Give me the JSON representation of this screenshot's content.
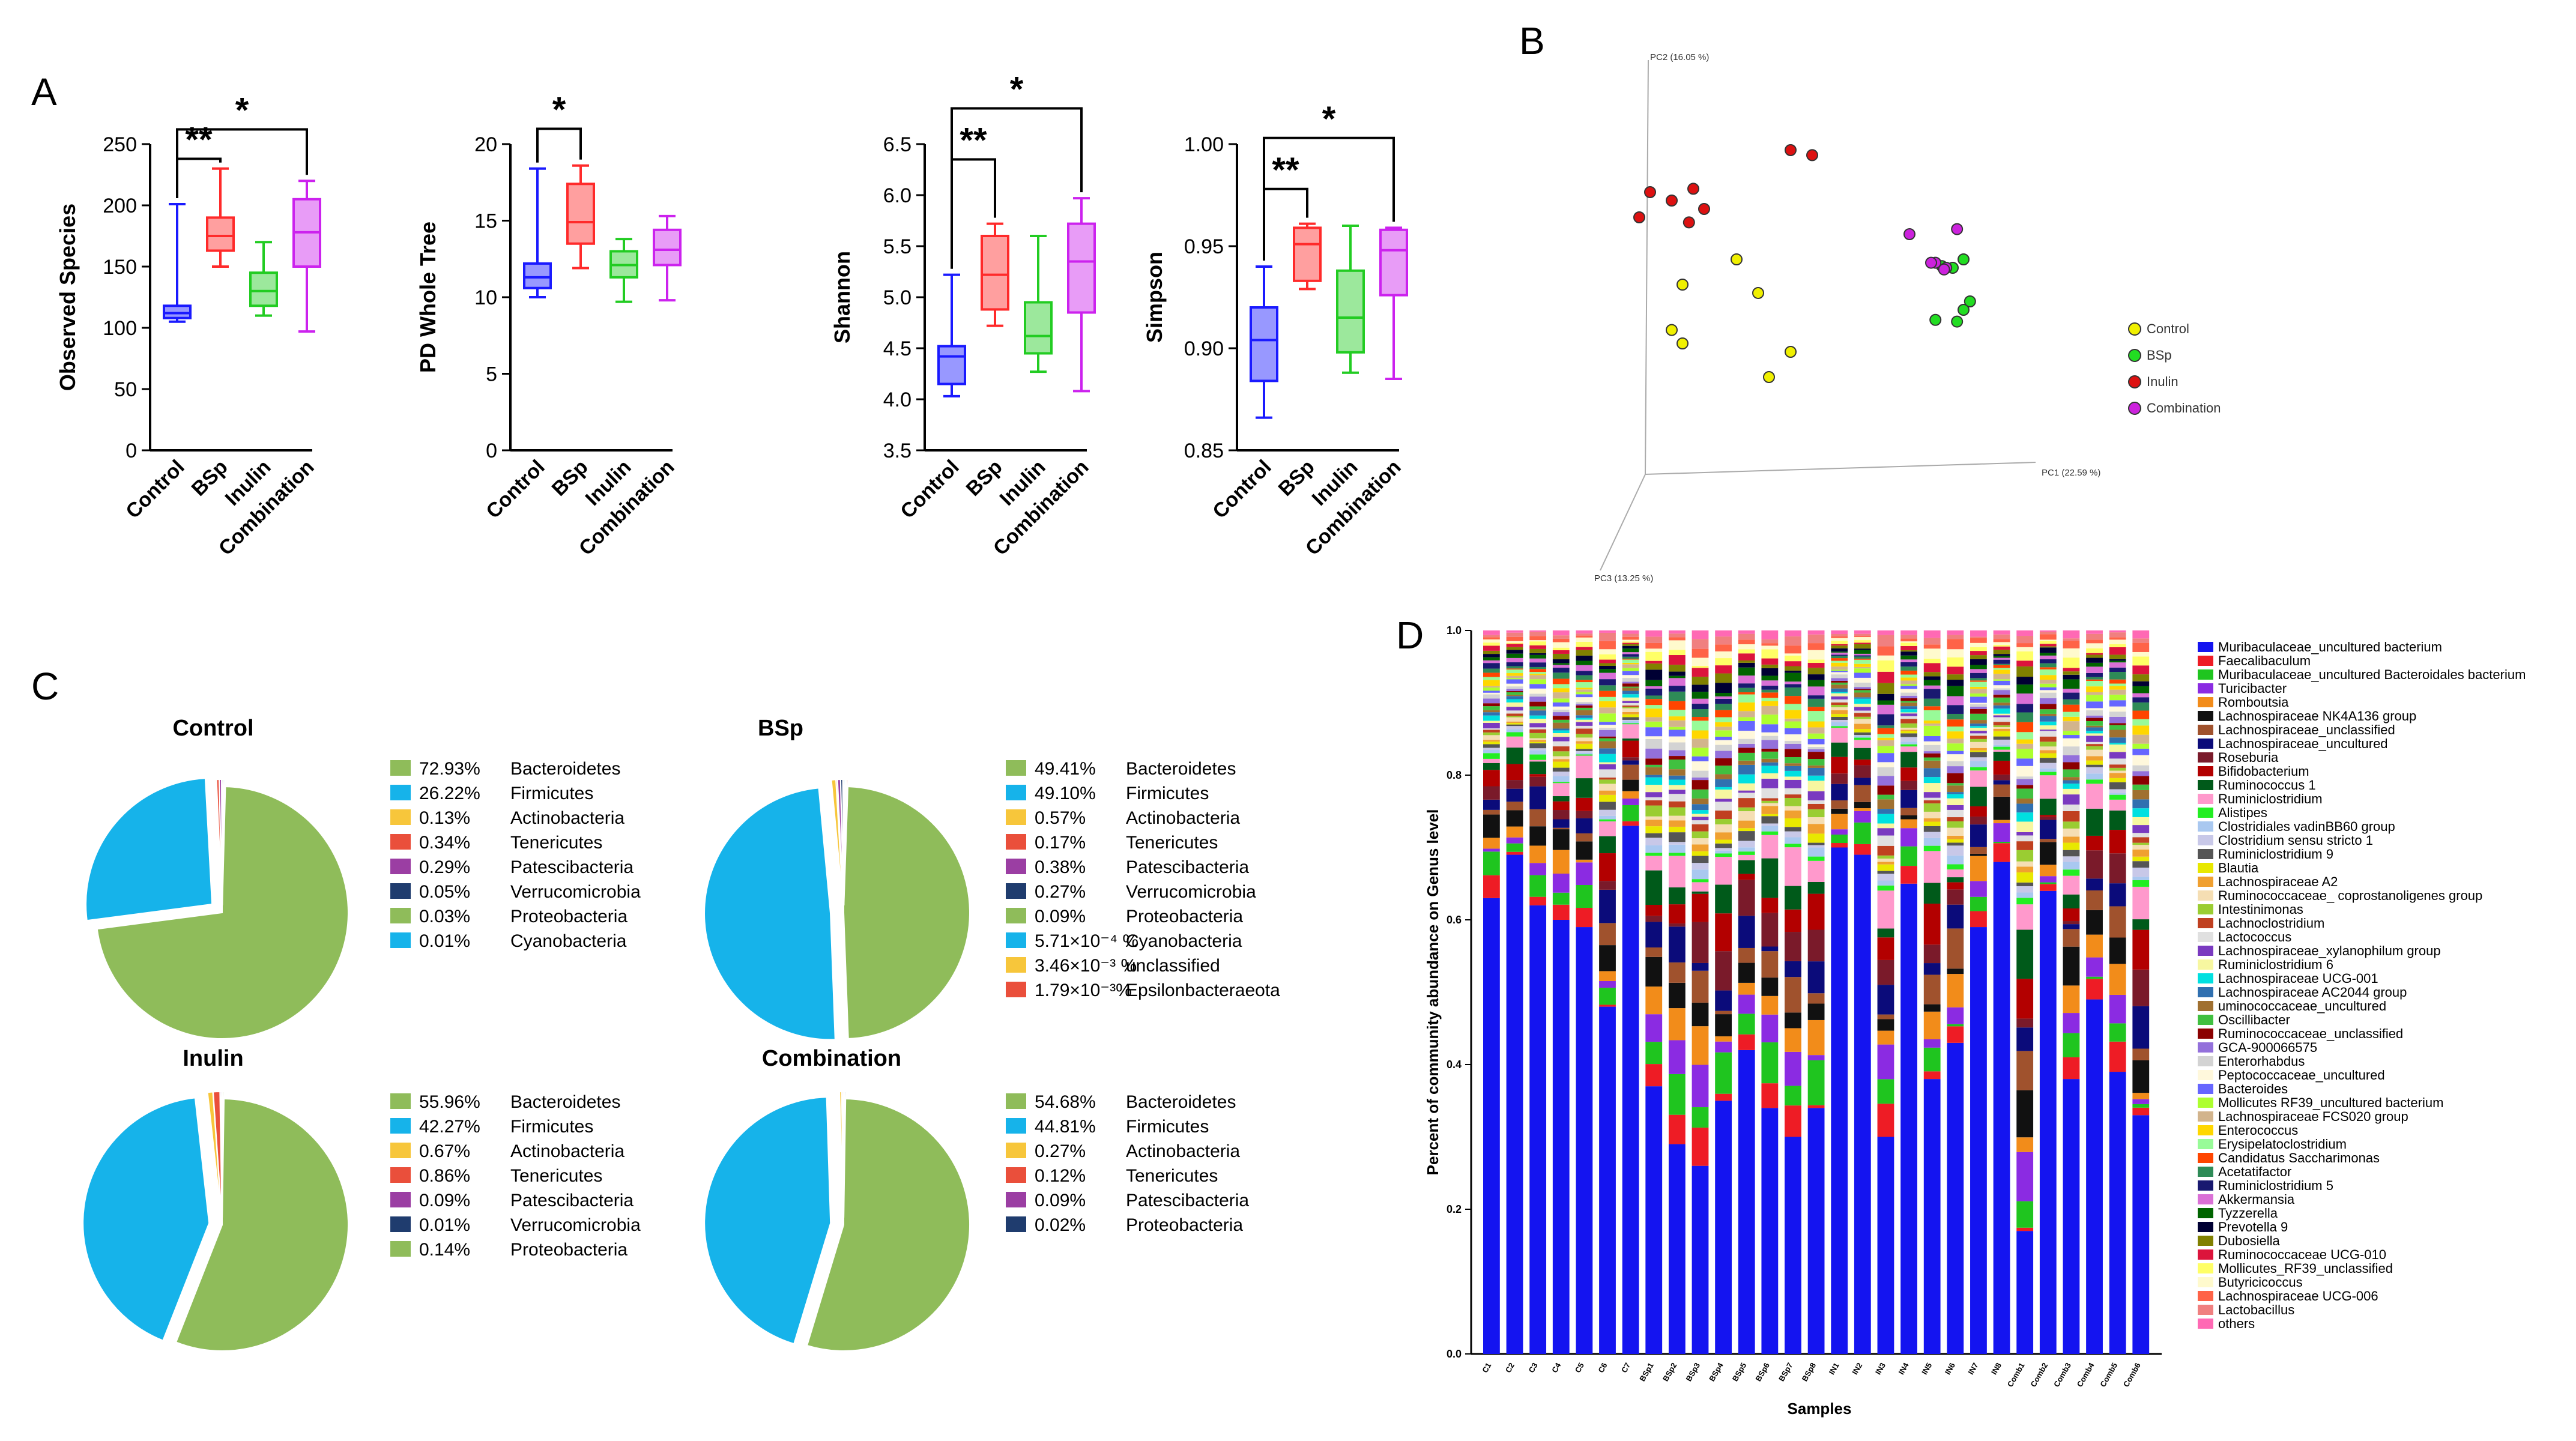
{
  "panels": {
    "a": "A",
    "b": "B",
    "c": "C",
    "d": "D"
  },
  "chart_data": [
    {
      "type": "box",
      "panel": "A",
      "ylabel": "Observed Species",
      "ylim": [
        0,
        250
      ],
      "yticks": [
        0,
        50,
        100,
        150,
        200,
        250
      ],
      "categories": [
        "Control",
        "BSp",
        "Inulin",
        "Combination"
      ],
      "colors": [
        "#1a1aff",
        "#ff2a2a",
        "#22cc22",
        "#cc22ee"
      ],
      "boxes": [
        {
          "min": 105,
          "q1": 108,
          "median": 112,
          "q3": 118,
          "max": 201
        },
        {
          "min": 150,
          "q1": 163,
          "median": 175,
          "q3": 190,
          "max": 230
        },
        {
          "min": 110,
          "q1": 118,
          "median": 130,
          "q3": 145,
          "max": 170
        },
        {
          "min": 97,
          "q1": 150,
          "median": 178,
          "q3": 205,
          "max": 220
        }
      ],
      "brackets": [
        {
          "from": 0,
          "to": 1,
          "label": "**",
          "y": 238
        },
        {
          "from": 0,
          "to": 3,
          "label": "*",
          "y": 262
        }
      ]
    },
    {
      "type": "box",
      "panel": "A",
      "ylabel": "PD Whole Tree",
      "ylim": [
        0,
        20
      ],
      "yticks": [
        0,
        5,
        10,
        15,
        20
      ],
      "categories": [
        "Control",
        "BSp",
        "Inulin",
        "Combination"
      ],
      "colors": [
        "#1a1aff",
        "#ff2a2a",
        "#22cc22",
        "#cc22ee"
      ],
      "boxes": [
        {
          "min": 10,
          "q1": 10.6,
          "median": 11.3,
          "q3": 12.2,
          "max": 18.4
        },
        {
          "min": 11.9,
          "q1": 13.5,
          "median": 14.9,
          "q3": 17.4,
          "max": 18.6
        },
        {
          "min": 9.7,
          "q1": 11.3,
          "median": 12.1,
          "q3": 13,
          "max": 13.8
        },
        {
          "min": 9.8,
          "q1": 12.1,
          "median": 13.1,
          "q3": 14.4,
          "max": 15.3
        }
      ],
      "brackets": [
        {
          "from": 0,
          "to": 1,
          "label": "*",
          "y": 21
        }
      ]
    },
    {
      "type": "box",
      "panel": "A",
      "ylabel": "Shannon",
      "ylim": [
        3.5,
        6.5
      ],
      "yticks": [
        3.5,
        4.0,
        4.5,
        5.0,
        5.5,
        6.0,
        6.5
      ],
      "tick_labels": [
        "3.5",
        "4.0",
        "4.5",
        "5.0",
        "5.5",
        "6.0",
        "6.5"
      ],
      "categories": [
        "Control",
        "BSp",
        "Inulin",
        "Combination"
      ],
      "colors": [
        "#1a1aff",
        "#ff2a2a",
        "#22cc22",
        "#cc22ee"
      ],
      "boxes": [
        {
          "min": 4.03,
          "q1": 4.15,
          "median": 4.42,
          "q3": 4.52,
          "max": 5.22
        },
        {
          "min": 4.72,
          "q1": 4.88,
          "median": 5.22,
          "q3": 5.6,
          "max": 5.72
        },
        {
          "min": 4.27,
          "q1": 4.45,
          "median": 4.62,
          "q3": 4.95,
          "max": 5.6
        },
        {
          "min": 4.08,
          "q1": 4.85,
          "median": 5.35,
          "q3": 5.72,
          "max": 5.97
        }
      ],
      "brackets": [
        {
          "from": 0,
          "to": 1,
          "label": "**",
          "y": 6.35
        },
        {
          "from": 0,
          "to": 3,
          "label": "*",
          "y": 6.85
        }
      ]
    },
    {
      "type": "box",
      "panel": "A",
      "ylabel": "Simpson",
      "ylim": [
        0.85,
        1.0
      ],
      "yticks": [
        0.85,
        0.9,
        0.95,
        1.0
      ],
      "tick_labels": [
        "0.85",
        "0.90",
        "0.95",
        "1.00"
      ],
      "categories": [
        "Control",
        "BSp",
        "Inulin",
        "Combination"
      ],
      "colors": [
        "#1a1aff",
        "#ff2a2a",
        "#22cc22",
        "#cc22ee"
      ],
      "boxes": [
        {
          "min": 0.866,
          "q1": 0.884,
          "median": 0.904,
          "q3": 0.92,
          "max": 0.94
        },
        {
          "min": 0.929,
          "q1": 0.933,
          "median": 0.951,
          "q3": 0.959,
          "max": 0.961
        },
        {
          "min": 0.888,
          "q1": 0.898,
          "median": 0.915,
          "q3": 0.938,
          "max": 0.96
        },
        {
          "min": 0.885,
          "q1": 0.926,
          "median": 0.948,
          "q3": 0.958,
          "max": 0.959
        }
      ],
      "brackets": [
        {
          "from": 0,
          "to": 1,
          "label": "**",
          "y": 0.978
        },
        {
          "from": 0,
          "to": 3,
          "label": "*",
          "y": 1.003
        }
      ]
    },
    {
      "type": "scatter",
      "panel": "B",
      "axis_labels": {
        "pc1": "PC1 (22.59 %)",
        "pc2": "PC2 (16.05 %)",
        "pc3": "PC3 (13.25 %)"
      },
      "groups": [
        {
          "name": "Control",
          "color": "#f0f000",
          "points": [
            [
              -0.3,
              0.1
            ],
            [
              -0.55,
              -0.05
            ],
            [
              -0.2,
              -0.1
            ],
            [
              -0.6,
              -0.32
            ],
            [
              -0.55,
              -0.4
            ],
            [
              -0.05,
              -0.45
            ],
            [
              -0.15,
              -0.6
            ]
          ]
        },
        {
          "name": "BSp",
          "color": "#22dd22",
          "points": [
            [
              0.75,
              0.1
            ],
            [
              0.7,
              0.05
            ],
            [
              0.78,
              -0.15
            ],
            [
              0.75,
              -0.2
            ],
            [
              0.62,
              -0.26
            ],
            [
              0.72,
              -0.27
            ],
            [
              0.65,
              0.06
            ]
          ]
        },
        {
          "name": "Inulin",
          "color": "#dd1111",
          "points": [
            [
              -0.7,
              0.5
            ],
            [
              -0.6,
              0.45
            ],
            [
              -0.5,
              0.52
            ],
            [
              -0.45,
              0.4
            ],
            [
              -0.75,
              0.35
            ],
            [
              -0.52,
              0.32
            ],
            [
              -0.05,
              0.75
            ],
            [
              0.05,
              0.72
            ]
          ]
        },
        {
          "name": "Combination",
          "color": "#cc22dd",
          "points": [
            [
              0.5,
              0.25
            ],
            [
              0.62,
              0.08
            ],
            [
              0.67,
              0.05
            ],
            [
              0.6,
              0.08
            ],
            [
              0.72,
              0.28
            ],
            [
              0.66,
              0.04
            ]
          ]
        }
      ]
    },
    {
      "type": "pie",
      "panel": "C",
      "title": "Control",
      "slices": [
        {
          "label": "Bacteroidetes",
          "text": "72.93%",
          "value": 72.93,
          "color": "#8fbc5a"
        },
        {
          "label": "Firmicutes",
          "text": "26.22%",
          "value": 26.22,
          "color": "#16b3ea"
        },
        {
          "label": "Actinobacteria",
          "text": "0.13%",
          "value": 0.13,
          "color": "#f7c63b"
        },
        {
          "label": "Tenericutes",
          "text": "0.34%",
          "value": 0.34,
          "color": "#ea4f3b"
        },
        {
          "label": "Patescibacteria",
          "text": "0.29%",
          "value": 0.29,
          "color": "#9b3ea3"
        },
        {
          "label": "Verrucomicrobia",
          "text": "0.05%",
          "value": 0.05,
          "color": "#1f3c6e"
        },
        {
          "label": "Proteobacteria",
          "text": "0.03%",
          "value": 0.03,
          "color": "#8fbc5a"
        },
        {
          "label": "Cyanobacteria",
          "text": "0.01%",
          "value": 0.01,
          "color": "#16b3ea"
        }
      ]
    },
    {
      "type": "pie",
      "panel": "C",
      "title": "BSp",
      "slices": [
        {
          "label": "Bacteroidetes",
          "text": "49.41%",
          "value": 49.41,
          "color": "#8fbc5a"
        },
        {
          "label": "Firmicutes",
          "text": "49.10%",
          "value": 49.1,
          "color": "#16b3ea"
        },
        {
          "label": "Actinobacteria",
          "text": "0.57%",
          "value": 0.57,
          "color": "#f7c63b"
        },
        {
          "label": "Tenericutes",
          "text": "0.17%",
          "value": 0.17,
          "color": "#ea4f3b"
        },
        {
          "label": "Patescibacteria",
          "text": "0.38%",
          "value": 0.38,
          "color": "#9b3ea3"
        },
        {
          "label": "Verrucomicrobia",
          "text": "0.27%",
          "value": 0.27,
          "color": "#1f3c6e"
        },
        {
          "label": "Proteobacteria",
          "text": "0.09%",
          "value": 0.09,
          "color": "#8fbc5a"
        },
        {
          "label": "Cyanobacteria",
          "text": "5.71×10⁻⁴ %",
          "value": 0.000571,
          "color": "#16b3ea"
        },
        {
          "label": "unclassified",
          "text": "3.46×10⁻³ %",
          "value": 0.00346,
          "color": "#f7c63b"
        },
        {
          "label": "Epsilonbacteraeota",
          "text": "1.79×10⁻³%",
          "value": 0.00179,
          "color": "#ea4f3b"
        }
      ]
    },
    {
      "type": "pie",
      "panel": "C",
      "title": "Inulin",
      "slices": [
        {
          "label": "Bacteroidetes",
          "text": "55.96%",
          "value": 55.96,
          "color": "#8fbc5a"
        },
        {
          "label": "Firmicutes",
          "text": "42.27%",
          "value": 42.27,
          "color": "#16b3ea"
        },
        {
          "label": "Actinobacteria",
          "text": "0.67%",
          "value": 0.67,
          "color": "#f7c63b"
        },
        {
          "label": "Tenericutes",
          "text": "0.86%",
          "value": 0.86,
          "color": "#ea4f3b"
        },
        {
          "label": "Patescibacteria",
          "text": "0.09%",
          "value": 0.09,
          "color": "#9b3ea3"
        },
        {
          "label": "Verrucomicrobia",
          "text": "0.01%",
          "value": 0.01,
          "color": "#1f3c6e"
        },
        {
          "label": "Proteobacteria",
          "text": "0.14%",
          "value": 0.14,
          "color": "#8fbc5a"
        }
      ]
    },
    {
      "type": "pie",
      "panel": "C",
      "title": "Combination",
      "slices": [
        {
          "label": "Bacteroidetes",
          "text": "54.68%",
          "value": 54.68,
          "color": "#8fbc5a"
        },
        {
          "label": "Firmicutes",
          "text": "44.81%",
          "value": 44.81,
          "color": "#16b3ea"
        },
        {
          "label": "Actinobacteria",
          "text": "0.27%",
          "value": 0.27,
          "color": "#f7c63b"
        },
        {
          "label": "Tenericutes",
          "text": "0.12%",
          "value": 0.12,
          "color": "#ea4f3b"
        },
        {
          "label": "Patescibacteria",
          "text": "0.09%",
          "value": 0.09,
          "color": "#9b3ea3"
        },
        {
          "label": "Proteobacteria",
          "text": "0.02%",
          "value": 0.02,
          "color": "#1f3c6e"
        }
      ]
    },
    {
      "type": "stacked-bar",
      "panel": "D",
      "ylabel": "Percent of community abundance on Genus level",
      "xlabel": "Samples",
      "ylim": [
        0,
        1
      ],
      "yticks": [
        "0.0",
        "0.2",
        "0.4",
        "0.6",
        "0.8",
        "1.0"
      ],
      "samples": [
        "C1",
        "C2",
        "C3",
        "C4",
        "C5",
        "C6",
        "C7",
        "BSp1",
        "BSp2",
        "BSp3",
        "BSp4",
        "BSp5",
        "BSp6",
        "BSp7",
        "BSp8",
        "IN1",
        "IN2",
        "IN3",
        "IN4",
        "IN5",
        "IN6",
        "IN7",
        "IN8",
        "Comb1",
        "Comb2",
        "Comb3",
        "Comb4",
        "Comb5",
        "Comb6"
      ],
      "muribaculaceae_values": [
        0.63,
        0.69,
        0.62,
        0.6,
        0.59,
        0.48,
        0.73,
        0.37,
        0.29,
        0.26,
        0.35,
        0.42,
        0.34,
        0.3,
        0.34,
        0.7,
        0.69,
        0.3,
        0.65,
        0.38,
        0.43,
        0.59,
        0.68,
        0.17,
        0.64,
        0.38,
        0.49,
        0.39,
        0.33
      ],
      "legend": [
        {
          "name": "Muribaculaceae_uncultured bacterium",
          "color": "#1414f0"
        },
        {
          "name": "Faecalibaculum",
          "color": "#ee1c25"
        },
        {
          "name": "Muribaculaceae_uncultured Bacteroidales bacterium",
          "color": "#1fc51f"
        },
        {
          "name": "Turicibacter",
          "color": "#8b2be2"
        },
        {
          "name": "Romboutsia",
          "color": "#f28c1a"
        },
        {
          "name": "Lachnospiraceae NK4A136 group",
          "color": "#111111"
        },
        {
          "name": "Lachnospiraceae_unclassified",
          "color": "#a0522d"
        },
        {
          "name": "Lachnospiraceae_uncultured",
          "color": "#0b0b7a"
        },
        {
          "name": "Roseburia",
          "color": "#7a1a2a"
        },
        {
          "name": "Bifidobacterium",
          "color": "#b30000"
        },
        {
          "name": "Ruminococcus 1",
          "color": "#005a1a"
        },
        {
          "name": "Ruminiclostridium",
          "color": "#ff99cc"
        },
        {
          "name": "Alistipes",
          "color": "#22ee22"
        },
        {
          "name": "Clostridiales vadinBB60 group",
          "color": "#a9c8f0"
        },
        {
          "name": "Clostridium sensu stricto 1",
          "color": "#c8c8e8"
        },
        {
          "name": "Ruminiclostridium 9",
          "color": "#555555"
        },
        {
          "name": "Blautia",
          "color": "#e8e800"
        },
        {
          "name": "Lachnospiraceae A2",
          "color": "#f0a030"
        },
        {
          "name": "Ruminococcaceae_ coprostanoligenes group",
          "color": "#f5deb3"
        },
        {
          "name": "Intestinimonas",
          "color": "#9acd32"
        },
        {
          "name": "Lachnoclostridium",
          "color": "#c04020"
        },
        {
          "name": "Lactococcus",
          "color": "#e0e0e0"
        },
        {
          "name": "Lachnospiraceae_xylanophilum group",
          "color": "#7a3ac0"
        },
        {
          "name": "Ruminiclostridium 6",
          "color": "#f7f7a0"
        },
        {
          "name": "Lachnospiraceae UCG-001",
          "color": "#00e0e0"
        },
        {
          "name": "Lachnospiraceae AC2044 group",
          "color": "#3070b0"
        },
        {
          "name": "uminococcaceae_uncultured",
          "color": "#a07030"
        },
        {
          "name": "Oscillibacter",
          "color": "#40c040"
        },
        {
          "name": "Ruminococcaceae_unclassified",
          "color": "#8b0000"
        },
        {
          "name": "GCA-900066575",
          "color": "#9370db"
        },
        {
          "name": "Enterorhabdus",
          "color": "#d3d3d3"
        },
        {
          "name": "Peptococcaceae_uncultured",
          "color": "#fff8dc"
        },
        {
          "name": "Bacteroides",
          "color": "#6666ff"
        },
        {
          "name": "Mollicutes RF39_uncultured bacterium",
          "color": "#adff2f"
        },
        {
          "name": "Lachnospiraceae FCS020 group",
          "color": "#d2b48c"
        },
        {
          "name": "Enterococcus",
          "color": "#ffd700"
        },
        {
          "name": "Erysipelatoclostridium",
          "color": "#98fb98"
        },
        {
          "name": "Candidatus Saccharimonas",
          "color": "#ff4500"
        },
        {
          "name": "Acetatifactor",
          "color": "#2e8b57"
        },
        {
          "name": "Ruminiclostridium 5",
          "color": "#191970"
        },
        {
          "name": "Akkermansia",
          "color": "#da70d6"
        },
        {
          "name": "Tyzzerella",
          "color": "#006400"
        },
        {
          "name": "Prevotella 9",
          "color": "#000033"
        },
        {
          "name": "Dubosiella",
          "color": "#808000"
        },
        {
          "name": "Ruminococcaceae UCG-010",
          "color": "#dc143c"
        },
        {
          "name": "Mollicutes_RF39_unclassified",
          "color": "#ffff66"
        },
        {
          "name": "Butyricicoccus",
          "color": "#fffacd"
        },
        {
          "name": "Lachnospiraceae UCG-006",
          "color": "#ff6347"
        },
        {
          "name": "Lactobacillus",
          "color": "#f08080"
        },
        {
          "name": "others",
          "color": "#ff69b4"
        }
      ]
    }
  ]
}
